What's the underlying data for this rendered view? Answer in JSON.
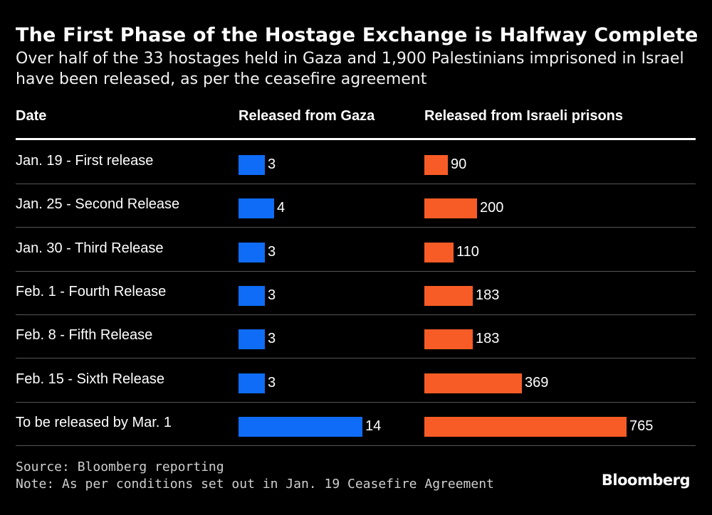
{
  "title": "The First Phase of the Hostage Exchange is Halfway Complete",
  "subtitle": "Over half of the 33 hostages held in Gaza and 1,900 Palestinians imprisoned in Israel have been released, as per the ceasefire agreement",
  "columns": {
    "date": "Date",
    "gaza": "Released from Gaza",
    "israel": "Released from Israeli prisons"
  },
  "colors": {
    "gaza": "#0f6cf6",
    "israel": "#f85c26",
    "background": "#000000"
  },
  "chart_data": {
    "type": "bar",
    "orientation": "horizontal",
    "categories": [
      "Jan. 19 - First release",
      "Jan. 25 - Second Release",
      "Jan. 30 - Third Release",
      "Feb. 1 - Fourth Release",
      "Feb. 8 - Fifth Release",
      "Feb. 15 - Sixth Release",
      "To be released by Mar. 1"
    ],
    "series": [
      {
        "name": "Released from Gaza",
        "values": [
          3,
          4,
          3,
          3,
          3,
          3,
          14
        ]
      },
      {
        "name": "Released from Israeli prisons",
        "values": [
          90,
          200,
          110,
          183,
          183,
          369,
          765
        ]
      }
    ]
  },
  "footer": {
    "source": "Source: Bloomberg reporting",
    "note": "Note: As per conditions set out in Jan. 19 Ceasefire Agreement",
    "brand": "Bloomberg"
  }
}
